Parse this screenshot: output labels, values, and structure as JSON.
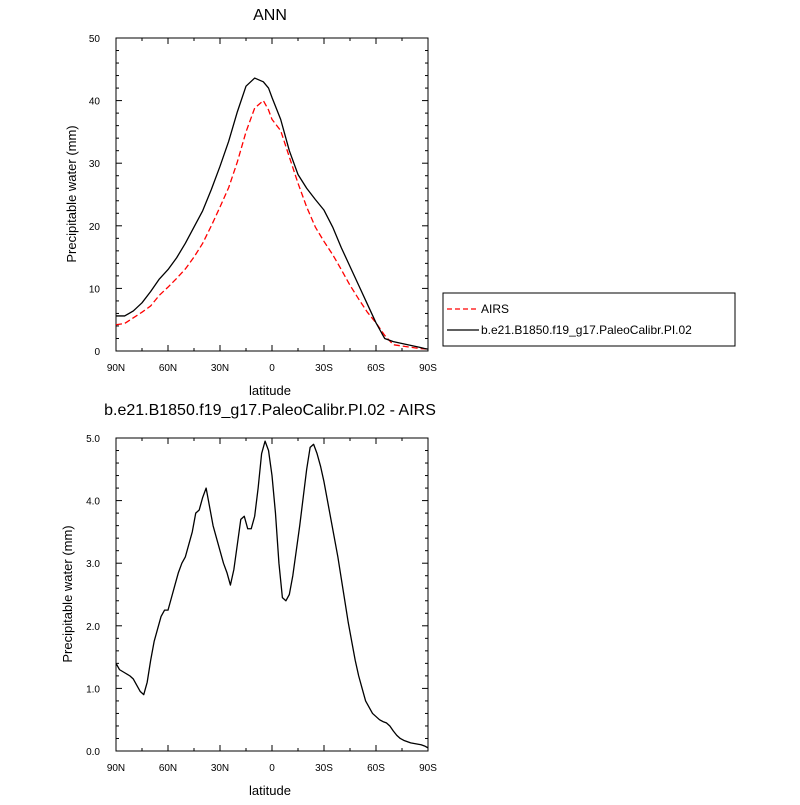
{
  "chart_data": [
    {
      "type": "line",
      "title": "ANN",
      "xlabel": "latitude",
      "ylabel": "Precipitable water (mm)",
      "xlim": [
        90,
        -90
      ],
      "ylim": [
        0,
        50
      ],
      "x_tick_values": [
        90,
        60,
        30,
        0,
        -30,
        -60,
        -90
      ],
      "x_tick_labels": [
        "90N",
        "60N",
        "30N",
        "0",
        "30S",
        "60S",
        "90S"
      ],
      "y_tick_values": [
        0,
        10,
        20,
        30,
        40,
        50
      ],
      "y_tick_labels": [
        "0",
        "10",
        "20",
        "30",
        "40",
        "50"
      ],
      "legend_position": "right",
      "series": [
        {
          "name": "AIRS",
          "color": "#ff0000",
          "dash": "dashed",
          "x": [
            90,
            85,
            80,
            75,
            70,
            65,
            60,
            55,
            50,
            45,
            40,
            35,
            30,
            25,
            20,
            15,
            10,
            5,
            2,
            0,
            -5,
            -10,
            -15,
            -20,
            -25,
            -30,
            -35,
            -40,
            -45,
            -50,
            -55,
            -60,
            -65,
            -70,
            -75,
            -80,
            -85,
            -88,
            -90
          ],
          "y": [
            4.2,
            4.4,
            5.3,
            6.2,
            7.2,
            8.9,
            10.2,
            11.6,
            13.1,
            15.0,
            17.2,
            20.0,
            23.0,
            26.1,
            30.2,
            35.0,
            38.8,
            40.0,
            38.5,
            37.0,
            35.2,
            31.0,
            26.8,
            23.0,
            19.8,
            17.5,
            15.4,
            13.0,
            10.5,
            8.3,
            6.2,
            4.5,
            2.5,
            1.0,
            0.8,
            0.6,
            0.4,
            0.35,
            0.3
          ]
        },
        {
          "name": "b.e21.B1850.f19_g17.PaleoCalibr.PI.02",
          "color": "#000000",
          "dash": "solid",
          "x": [
            90,
            85,
            80,
            75,
            70,
            65,
            60,
            55,
            50,
            45,
            40,
            35,
            30,
            25,
            20,
            15,
            10,
            5,
            2,
            0,
            -5,
            -10,
            -15,
            -20,
            -25,
            -30,
            -35,
            -40,
            -45,
            -50,
            -55,
            -60,
            -65,
            -70,
            -75,
            -80,
            -85,
            -88,
            -90
          ],
          "y": [
            5.6,
            5.6,
            6.4,
            7.7,
            9.5,
            11.5,
            13.0,
            14.9,
            17.2,
            19.8,
            22.4,
            25.8,
            29.5,
            33.5,
            38.2,
            42.3,
            43.6,
            43.0,
            42.0,
            40.5,
            37.0,
            32.0,
            28.2,
            26.0,
            24.2,
            22.5,
            19.8,
            16.5,
            13.5,
            10.5,
            7.5,
            4.5,
            2.0,
            1.5,
            1.2,
            0.9,
            0.6,
            0.4,
            0.3
          ]
        }
      ]
    },
    {
      "type": "line",
      "title": "b.e21.B1850.f19_g17.PaleoCalibr.PI.02 - AIRS",
      "xlabel": "latitude",
      "ylabel": "Precipitable water (mm)",
      "xlim": [
        90,
        -90
      ],
      "ylim": [
        0,
        5
      ],
      "x_tick_values": [
        90,
        60,
        30,
        0,
        -30,
        -60,
        -90
      ],
      "x_tick_labels": [
        "90N",
        "60N",
        "30N",
        "0",
        "30S",
        "60S",
        "90S"
      ],
      "y_tick_values": [
        0,
        1,
        2,
        3,
        4,
        5
      ],
      "y_tick_labels": [
        "0.0",
        "1.0",
        "2.0",
        "3.0",
        "4.0",
        "5.0"
      ],
      "series": [
        {
          "color": "#000000",
          "dash": "solid",
          "x": [
            90,
            88,
            85,
            82,
            80,
            78,
            76,
            74,
            72,
            70,
            68,
            66,
            64,
            62,
            60,
            58,
            56,
            54,
            52,
            50,
            48,
            46,
            44,
            42,
            40,
            38,
            36,
            34,
            32,
            30,
            28,
            26,
            24,
            22,
            20,
            18,
            16,
            14,
            12,
            10,
            8,
            6,
            4,
            2,
            0,
            -2,
            -4,
            -6,
            -8,
            -10,
            -12,
            -14,
            -16,
            -18,
            -20,
            -22,
            -24,
            -26,
            -28,
            -30,
            -32,
            -34,
            -36,
            -38,
            -40,
            -42,
            -44,
            -46,
            -48,
            -50,
            -52,
            -54,
            -56,
            -58,
            -60,
            -62,
            -64,
            -66,
            -68,
            -70,
            -72,
            -74,
            -76,
            -78,
            -80,
            -82,
            -84,
            -86,
            -88,
            -90
          ],
          "y": [
            1.4,
            1.3,
            1.25,
            1.2,
            1.15,
            1.05,
            0.95,
            0.9,
            1.1,
            1.45,
            1.75,
            1.95,
            2.15,
            2.25,
            2.25,
            2.45,
            2.65,
            2.85,
            3.0,
            3.1,
            3.3,
            3.5,
            3.8,
            3.85,
            4.05,
            4.2,
            3.9,
            3.6,
            3.4,
            3.2,
            3.0,
            2.85,
            2.65,
            2.9,
            3.3,
            3.7,
            3.75,
            3.55,
            3.55,
            3.75,
            4.2,
            4.75,
            4.95,
            4.8,
            4.4,
            3.8,
            3.0,
            2.45,
            2.4,
            2.5,
            2.8,
            3.2,
            3.6,
            4.05,
            4.5,
            4.85,
            4.9,
            4.75,
            4.55,
            4.3,
            4.0,
            3.7,
            3.4,
            3.1,
            2.75,
            2.4,
            2.05,
            1.75,
            1.45,
            1.2,
            1.0,
            0.8,
            0.7,
            0.6,
            0.55,
            0.5,
            0.47,
            0.45,
            0.4,
            0.32,
            0.25,
            0.2,
            0.17,
            0.15,
            0.13,
            0.12,
            0.11,
            0.1,
            0.08,
            0.05
          ]
        }
      ]
    }
  ]
}
